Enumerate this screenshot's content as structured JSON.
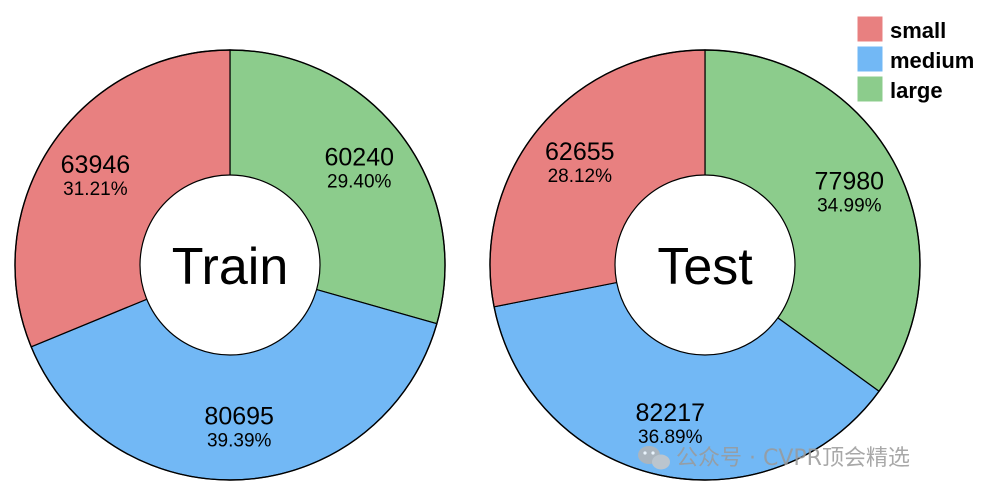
{
  "chart_data": [
    {
      "type": "pie",
      "center_label": "Train",
      "categories": [
        "small",
        "medium",
        "large"
      ],
      "values": [
        63946,
        80695,
        60240
      ],
      "percent_labels": [
        "31.21%",
        "39.39%",
        "29.40%"
      ]
    },
    {
      "type": "pie",
      "center_label": "Test",
      "categories": [
        "small",
        "medium",
        "large"
      ],
      "values": [
        62655,
        82217,
        77980
      ],
      "percent_labels": [
        "28.12%",
        "36.89%",
        "34.99%"
      ]
    }
  ],
  "legend": {
    "placement": "top-right",
    "items": [
      {
        "label": "small",
        "color": "#e88080"
      },
      {
        "label": "medium",
        "color": "#72b8f5"
      },
      {
        "label": "large",
        "color": "#8ccc8c"
      }
    ]
  },
  "watermark": {
    "text": "公众号 · CVPR顶会精选",
    "icon": "wechat-icon"
  }
}
